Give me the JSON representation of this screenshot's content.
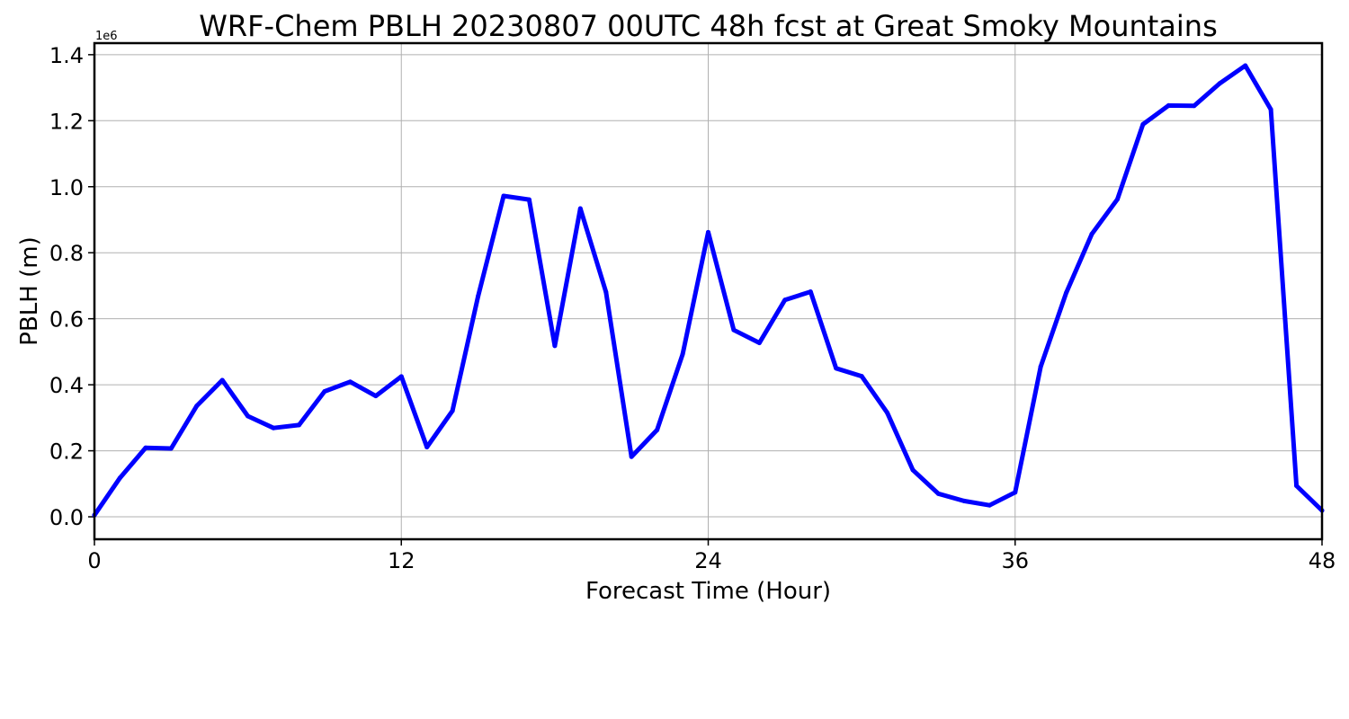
{
  "chart_data": {
    "type": "line",
    "title": "WRF-Chem PBLH  20230807 00UTC 48h fcst at Great Smoky Mountains",
    "xlabel": "Forecast Time (Hour)",
    "ylabel": "PBLH  (m)",
    "y_offset_label": "1e6",
    "xlim": [
      0,
      48
    ],
    "ylim": [
      -0.068,
      1.435
    ],
    "x_ticks": [
      0,
      12,
      24,
      36,
      48
    ],
    "x_tick_labels": [
      "0",
      "12",
      "24",
      "36",
      "48"
    ],
    "y_ticks": [
      0.0,
      0.2,
      0.4,
      0.6,
      0.8,
      1.0,
      1.2,
      1.4
    ],
    "y_tick_labels": [
      "0.0",
      "0.2",
      "0.4",
      "0.6",
      "0.8",
      "1.0",
      "1.2",
      "1.4"
    ],
    "grid": true,
    "line_color": "#0000ff",
    "series": [
      {
        "x": [
          0,
          1,
          2,
          3,
          4,
          5,
          6,
          7,
          8,
          9,
          10,
          11,
          12,
          13,
          14,
          15,
          16,
          17,
          18,
          19,
          20,
          21,
          22,
          23,
          24,
          25,
          26,
          27,
          28,
          29,
          30,
          31,
          32,
          33,
          34,
          35,
          36,
          37,
          38,
          39,
          40,
          41,
          42,
          43,
          44,
          45,
          46,
          47,
          48
        ],
        "values": [
          0.005,
          0.118,
          0.209,
          0.207,
          0.336,
          0.414,
          0.305,
          0.269,
          0.278,
          0.38,
          0.409,
          0.366,
          0.425,
          0.211,
          0.321,
          0.668,
          0.972,
          0.961,
          0.518,
          0.934,
          0.681,
          0.182,
          0.263,
          0.493,
          0.862,
          0.566,
          0.527,
          0.657,
          0.682,
          0.45,
          0.426,
          0.315,
          0.142,
          0.07,
          0.048,
          0.035,
          0.074,
          0.455,
          0.679,
          0.857,
          0.962,
          1.189,
          1.246,
          1.245,
          1.313,
          1.367,
          1.234,
          0.094,
          0.019
        ]
      }
    ]
  }
}
